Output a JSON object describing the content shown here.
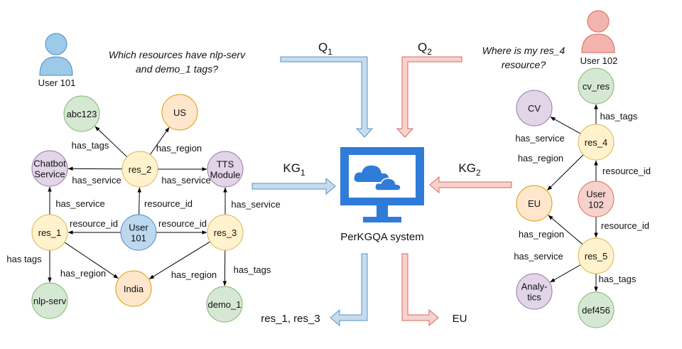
{
  "users": {
    "left": "User 101",
    "right": "User 102"
  },
  "questions": {
    "left_line1": "Which resources have nlp-serv",
    "left_line2": "and demo_1 tags?",
    "right_line1": "Where is my res_4",
    "right_line2": "resource?"
  },
  "center": {
    "q1_main": "Q",
    "q1_sub": "1",
    "q2_main": "Q",
    "q2_sub": "2",
    "kg1_main": "KG",
    "kg1_sub": "1",
    "kg2_main": "KG",
    "kg2_sub": "2",
    "system_label": "PerKGQA system",
    "answer_left": "res_1, res_3",
    "answer_right": "EU"
  },
  "colors": {
    "blue_arrow_fill": "#c6dcee",
    "blue_arrow_stroke": "#5a93c4",
    "red_arrow_fill": "#f6d2cd",
    "red_arrow_stroke": "#d9695c",
    "monitor": "#2f7cd8",
    "green_fill": "#d5e8d4",
    "green_stroke": "#82b366",
    "yellow_fill": "#fff2cc",
    "yellow_stroke": "#d6b656",
    "orange_fill": "#ffe6cc",
    "orange_stroke": "#d79b00",
    "purple_fill": "#e1d5e7",
    "purple_stroke": "#9673a6",
    "blue_fill": "#bcd8ef",
    "blue_stroke": "#4f88c2",
    "user_left": "#9ccbea",
    "user_right": "#f3b4ae"
  },
  "nodes": [
    {
      "id": "abc123",
      "lines": [
        "abc123"
      ],
      "color": "green"
    },
    {
      "id": "us",
      "lines": [
        "US"
      ],
      "color": "orange"
    },
    {
      "id": "chatbot",
      "lines": [
        "Chatbot",
        "Service"
      ],
      "color": "purple"
    },
    {
      "id": "res2",
      "lines": [
        "res_2"
      ],
      "color": "yellow"
    },
    {
      "id": "tts",
      "lines": [
        "TTS",
        "Module"
      ],
      "color": "purple"
    },
    {
      "id": "res1",
      "lines": [
        "res_1"
      ],
      "color": "yellow"
    },
    {
      "id": "user101",
      "lines": [
        "User",
        "101"
      ],
      "color": "blue"
    },
    {
      "id": "res3",
      "lines": [
        "res_3"
      ],
      "color": "yellow"
    },
    {
      "id": "india",
      "lines": [
        "India"
      ],
      "color": "orange"
    },
    {
      "id": "nlpserv",
      "lines": [
        "nlp-serv"
      ],
      "color": "green"
    },
    {
      "id": "demo1",
      "lines": [
        "demo_1"
      ],
      "color": "green"
    },
    {
      "id": "cvres",
      "lines": [
        "cv_res"
      ],
      "color": "green"
    },
    {
      "id": "cv",
      "lines": [
        "CV"
      ],
      "color": "purple"
    },
    {
      "id": "res4",
      "lines": [
        "res_4"
      ],
      "color": "yellow"
    },
    {
      "id": "eu",
      "lines": [
        "EU"
      ],
      "color": "orange"
    },
    {
      "id": "user102",
      "lines": [
        "User",
        "102"
      ],
      "color": "red"
    },
    {
      "id": "res5",
      "lines": [
        "res_5"
      ],
      "color": "yellow"
    },
    {
      "id": "analytics",
      "lines": [
        "Analy-",
        "tics"
      ],
      "color": "purple"
    },
    {
      "id": "def456",
      "lines": [
        "def456"
      ],
      "color": "green"
    }
  ],
  "edges": [
    {
      "from": "res2",
      "to": "abc123",
      "label": "has_tags"
    },
    {
      "from": "res2",
      "to": "us",
      "label": "has_region"
    },
    {
      "from": "res2",
      "to": "chatbot",
      "label": "has_service"
    },
    {
      "from": "res2",
      "to": "tts",
      "label": "has_service"
    },
    {
      "from": "user101",
      "to": "res2",
      "label": "resource_id"
    },
    {
      "from": "user101",
      "to": "res1",
      "label": "resource_id"
    },
    {
      "from": "user101",
      "to": "res3",
      "label": "resource_id"
    },
    {
      "from": "res1",
      "to": "chatbot",
      "label": "has_service"
    },
    {
      "from": "res3",
      "to": "tts",
      "label": "has_service"
    },
    {
      "from": "res1",
      "to": "nlpserv",
      "label": "has tags"
    },
    {
      "from": "res1",
      "to": "india",
      "label": "has_region"
    },
    {
      "from": "res3",
      "to": "india",
      "label": "has_region"
    },
    {
      "from": "res3",
      "to": "demo1",
      "label": "has_tags"
    },
    {
      "from": "res4",
      "to": "cvres",
      "label": "has_tags"
    },
    {
      "from": "res4",
      "to": "cv",
      "label": "has_service"
    },
    {
      "from": "res4",
      "to": "eu",
      "label": "has_region"
    },
    {
      "from": "user102",
      "to": "res4",
      "label": "resource_id"
    },
    {
      "from": "user102",
      "to": "res5",
      "label": "resource_id"
    },
    {
      "from": "res5",
      "to": "eu",
      "label": "has_region"
    },
    {
      "from": "res5",
      "to": "analytics",
      "label": "has_service"
    },
    {
      "from": "res5",
      "to": "def456",
      "label": "has_tags"
    }
  ]
}
